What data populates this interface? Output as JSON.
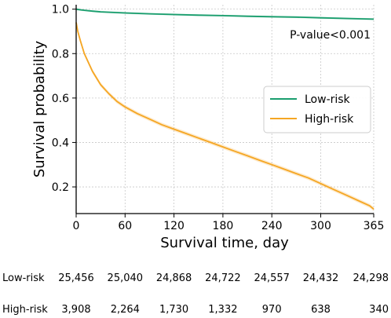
{
  "chart_data": {
    "type": "line",
    "xlabel": "Survival time, day",
    "ylabel": "Survival probability",
    "xlim": [
      0,
      365
    ],
    "ylim": [
      0.08,
      1.02
    ],
    "xticks": [
      0,
      60,
      120,
      180,
      240,
      300,
      365
    ],
    "yticks": [
      0.2,
      0.4,
      0.6,
      0.8,
      1.0
    ],
    "ytick_labels": [
      "0.2",
      "0.4",
      "0.6",
      "0.8",
      "1.0"
    ],
    "grid": true,
    "legend_position": "center-right",
    "annotation": "P-value<0.001",
    "series": [
      {
        "name": "Low-risk",
        "color": "#1a9e6e",
        "x": [
          0,
          5,
          10,
          20,
          30,
          60,
          90,
          120,
          150,
          180,
          210,
          240,
          270,
          300,
          330,
          365
        ],
        "y": [
          1.0,
          0.997,
          0.995,
          0.991,
          0.988,
          0.983,
          0.979,
          0.976,
          0.973,
          0.971,
          0.968,
          0.966,
          0.964,
          0.961,
          0.958,
          0.955
        ]
      },
      {
        "name": "High-risk",
        "color": "#f5a623",
        "x": [
          0,
          2,
          5,
          10,
          15,
          20,
          30,
          40,
          50,
          60,
          75,
          90,
          105,
          120,
          135,
          150,
          165,
          180,
          195,
          210,
          225,
          240,
          255,
          270,
          285,
          300,
          315,
          330,
          345,
          360,
          365
        ],
        "y": [
          0.94,
          0.9,
          0.86,
          0.8,
          0.76,
          0.72,
          0.66,
          0.62,
          0.585,
          0.56,
          0.53,
          0.505,
          0.48,
          0.46,
          0.44,
          0.42,
          0.4,
          0.38,
          0.36,
          0.34,
          0.32,
          0.3,
          0.28,
          0.26,
          0.24,
          0.215,
          0.19,
          0.165,
          0.14,
          0.115,
          0.1
        ]
      }
    ]
  },
  "risk_table": {
    "rows": [
      {
        "label": "Low-risk",
        "values": [
          "25,456",
          "25,040",
          "24,868",
          "24,722",
          "24,557",
          "24,432",
          "24,298"
        ]
      },
      {
        "label": "High-risk",
        "values": [
          "3,908",
          "2,264",
          "1,730",
          "1,332",
          "970",
          "638",
          "340"
        ]
      }
    ]
  }
}
